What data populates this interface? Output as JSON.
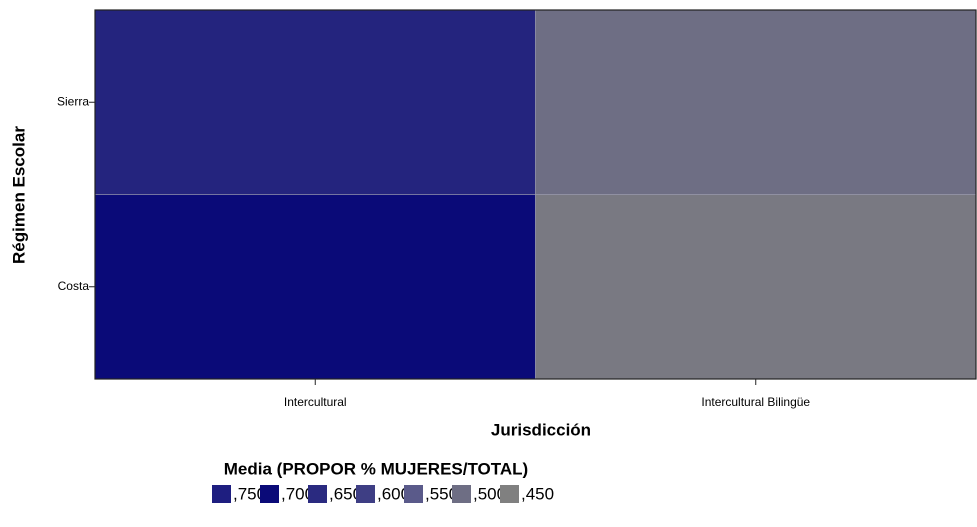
{
  "chart_data": {
    "type": "heatmap",
    "x_label": "Jurisdicción",
    "y_label": "Régimen Escolar",
    "x_categories": [
      "Intercultural",
      "Intercultural Bilingüe"
    ],
    "y_categories": [
      "Sierra",
      "Costa"
    ],
    "values": [
      [
        0.66,
        0.5
      ],
      [
        0.7,
        0.47
      ]
    ],
    "legend": {
      "title": "Media (PROPOR % MUJERES/TOTAL)",
      "levels": [
        {
          "value": 0.75,
          "label": ",750"
        },
        {
          "value": 0.7,
          "label": ",700"
        },
        {
          "value": 0.65,
          "label": ",650"
        },
        {
          "value": 0.6,
          "label": ",600"
        },
        {
          "value": 0.55,
          "label": ",550"
        },
        {
          "value": 0.5,
          "label": ",500"
        },
        {
          "value": 0.45,
          "label": ",450"
        }
      ],
      "colors": [
        "#1e1e80",
        "#0a0a78",
        "#2a2a80",
        "#3e3e84",
        "#5a5a8a",
        "#6e6e84",
        "#808080"
      ]
    }
  }
}
